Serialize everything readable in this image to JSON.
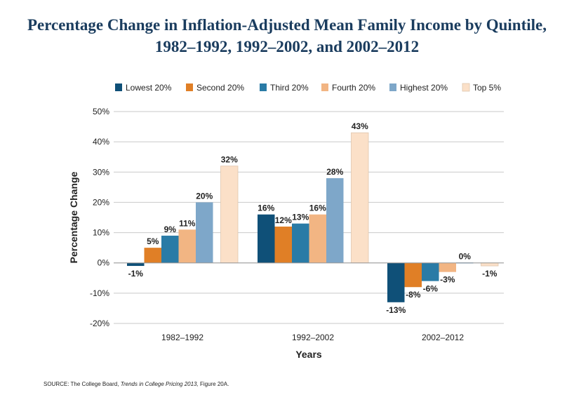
{
  "title_line1": "Percentage Change in Inflation-Adjusted Mean Family Income by Quintile,",
  "title_line2": "1982–1992, 1992–2002, and 2002–2012",
  "source": {
    "prefix": "SOURCE: The College Board, ",
    "publication": "Trends in College Pricing 2013,",
    "suffix": " Figure 20A."
  },
  "chart_data": {
    "type": "bar",
    "title": "Percentage Change in Inflation-Adjusted Mean Family Income by Quintile, 1982–1992, 1992–2002, and 2002–2012",
    "xlabel": "Years",
    "ylabel": "Percentage Change",
    "ylim": [
      -20,
      50
    ],
    "yticks": [
      50,
      40,
      30,
      20,
      10,
      0,
      -10,
      -20
    ],
    "ytick_labels": [
      "50%",
      "40%",
      "30%",
      "20%",
      "10%",
      "0%",
      "-10%",
      "-20%"
    ],
    "grid": true,
    "legend_position": "top",
    "categories": [
      "1982–1992",
      "1992–2002",
      "2002–2012"
    ],
    "series": [
      {
        "name": "Lowest 20%",
        "color": "#0f5078",
        "values": [
          -1,
          16,
          -13
        ],
        "labels": [
          "-1%",
          "16%",
          "-13%"
        ]
      },
      {
        "name": "Second 20%",
        "color": "#e07f26",
        "values": [
          5,
          12,
          -8
        ],
        "labels": [
          "5%",
          "12%",
          "-8%"
        ]
      },
      {
        "name": "Third 20%",
        "color": "#2a7ba6",
        "values": [
          9,
          13,
          -6
        ],
        "labels": [
          "9%",
          "13%",
          "-6%"
        ]
      },
      {
        "name": "Fourth 20%",
        "color": "#f2b583",
        "values": [
          11,
          16,
          -3
        ],
        "labels": [
          "11%",
          "16%",
          "-3%"
        ]
      },
      {
        "name": "Highest 20%",
        "color": "#7ea7c9",
        "values": [
          20,
          28,
          0
        ],
        "labels": [
          "20%",
          "28%",
          "0%"
        ]
      },
      {
        "name": "Top 5%",
        "color": "#fbe0c8",
        "values": [
          32,
          43,
          -1
        ],
        "labels": [
          "32%",
          "43%",
          "-1%"
        ]
      }
    ]
  }
}
